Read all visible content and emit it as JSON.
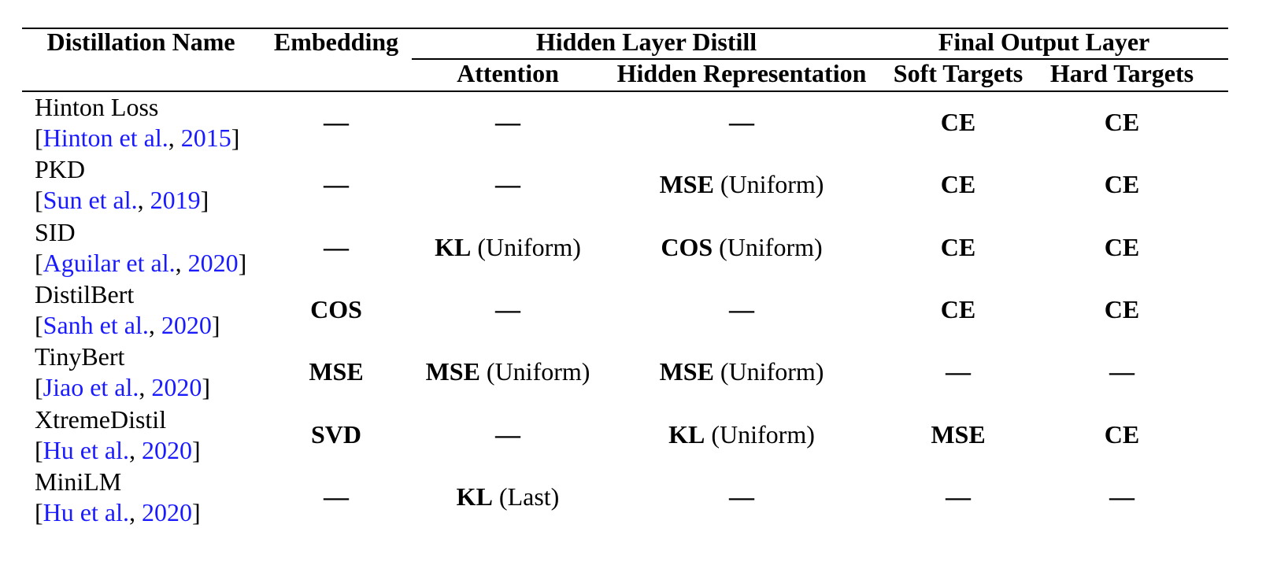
{
  "headers": {
    "name": "Distillation Name",
    "embedding": "Embedding",
    "hidden_group": "Hidden Layer Distill",
    "final_group": "Final Output Layer",
    "attention": "Attention",
    "hidden_rep": "Hidden Representation",
    "soft": "Soft Targets",
    "hard": "Hard Targets"
  },
  "rows": [
    {
      "name": "Hinton Loss",
      "cite_open": "[",
      "cite_author": "Hinton et al.",
      "cite_sep": ", ",
      "cite_year": "2015",
      "cite_close": "]",
      "embedding": {
        "bold": "—",
        "rest": ""
      },
      "attention": {
        "bold": "—",
        "rest": ""
      },
      "hidden": {
        "bold": "—",
        "rest": ""
      },
      "soft": {
        "bold": "CE",
        "rest": ""
      },
      "hard": {
        "bold": "CE",
        "rest": ""
      }
    },
    {
      "name": "PKD",
      "cite_open": "[",
      "cite_author": "Sun et al.",
      "cite_sep": ", ",
      "cite_year": "2019",
      "cite_close": "]",
      "embedding": {
        "bold": "—",
        "rest": ""
      },
      "attention": {
        "bold": "—",
        "rest": ""
      },
      "hidden": {
        "bold": "MSE",
        "rest": " (Uniform)"
      },
      "soft": {
        "bold": "CE",
        "rest": ""
      },
      "hard": {
        "bold": "CE",
        "rest": ""
      }
    },
    {
      "name": "SID",
      "cite_open": "[",
      "cite_author": "Aguilar et al.",
      "cite_sep": ", ",
      "cite_year": "2020",
      "cite_close": "]",
      "embedding": {
        "bold": "—",
        "rest": ""
      },
      "attention": {
        "bold": "KL",
        "rest": " (Uniform)"
      },
      "hidden": {
        "bold": "COS",
        "rest": " (Uniform)"
      },
      "soft": {
        "bold": "CE",
        "rest": ""
      },
      "hard": {
        "bold": "CE",
        "rest": ""
      }
    },
    {
      "name": "DistilBert",
      "cite_open": "[",
      "cite_author": "Sanh et al.",
      "cite_sep": ", ",
      "cite_year": "2020",
      "cite_close": "]",
      "embedding": {
        "bold": "COS",
        "rest": ""
      },
      "attention": {
        "bold": "—",
        "rest": ""
      },
      "hidden": {
        "bold": "—",
        "rest": ""
      },
      "soft": {
        "bold": "CE",
        "rest": ""
      },
      "hard": {
        "bold": "CE",
        "rest": ""
      }
    },
    {
      "name": "TinyBert",
      "cite_open": "[",
      "cite_author": "Jiao et al.",
      "cite_sep": ", ",
      "cite_year": "2020",
      "cite_close": "]",
      "embedding": {
        "bold": "MSE",
        "rest": ""
      },
      "attention": {
        "bold": "MSE",
        "rest": " (Uniform)"
      },
      "hidden": {
        "bold": "MSE",
        "rest": " (Uniform)"
      },
      "soft": {
        "bold": "—",
        "rest": ""
      },
      "hard": {
        "bold": "—",
        "rest": ""
      }
    },
    {
      "name": "XtremeDistil",
      "cite_open": "[",
      "cite_author": "Hu et al.",
      "cite_sep": ", ",
      "cite_year": "2020",
      "cite_close": "]",
      "embedding": {
        "bold": "SVD",
        "rest": ""
      },
      "attention": {
        "bold": "—",
        "rest": ""
      },
      "hidden": {
        "bold": "KL",
        "rest": " (Uniform)"
      },
      "soft": {
        "bold": "MSE",
        "rest": ""
      },
      "hard": {
        "bold": "CE",
        "rest": ""
      }
    },
    {
      "name": "MiniLM",
      "cite_open": "[",
      "cite_author": "Hu et al.",
      "cite_sep": ", ",
      "cite_year": "2020",
      "cite_close": "]",
      "embedding": {
        "bold": "—",
        "rest": ""
      },
      "attention": {
        "bold": "KL",
        "rest": " (Last)"
      },
      "hidden": {
        "bold": "—",
        "rest": ""
      },
      "soft": {
        "bold": "—",
        "rest": ""
      },
      "hard": {
        "bold": "—",
        "rest": ""
      }
    }
  ]
}
